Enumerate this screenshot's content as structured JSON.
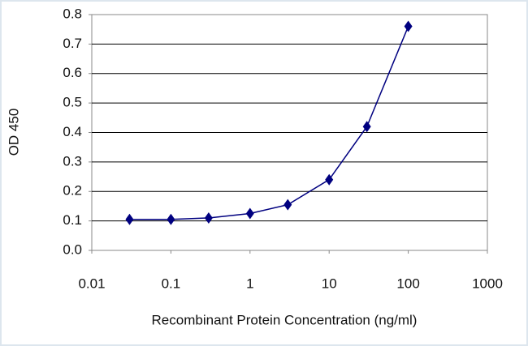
{
  "chart_data": {
    "type": "line",
    "x_label": "Recombinant Protein Concentration (ng/ml)",
    "y_label": "OD 450",
    "x": [
      0.03,
      0.1,
      0.3,
      1,
      3,
      10,
      30,
      100
    ],
    "series": [
      {
        "color": "#000080",
        "values": [
          0.105,
          0.105,
          0.11,
          0.125,
          0.155,
          0.24,
          0.42,
          0.76
        ]
      }
    ],
    "xscale": "log",
    "xlim": [
      0.01,
      1000
    ],
    "xticks": [
      0.01,
      0.1,
      1,
      10,
      100,
      1000
    ],
    "ylim": [
      0,
      0.8
    ],
    "yticks": [
      {
        "value": 0,
        "label": "0.0"
      },
      0.1,
      0.2,
      0.3,
      0.4,
      0.5,
      0.6,
      0.7,
      0.8
    ],
    "grid": true
  }
}
